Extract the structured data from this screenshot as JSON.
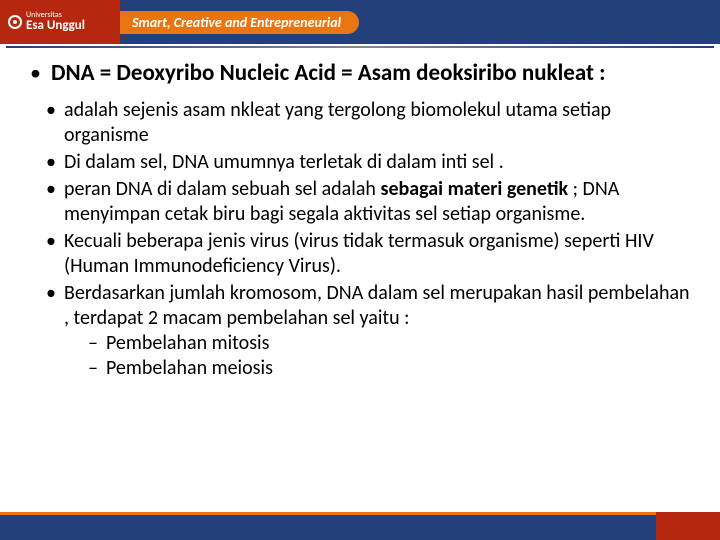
{
  "header": {
    "logo_top": "Universitas",
    "logo_bottom": "Esa Unggul",
    "tagline": "Smart, Creative and Entrepreneurial"
  },
  "title": "DNA = Deoxyribo Nucleic Acid = Asam deoksiribo nukleat :",
  "bullets": [
    {
      "text": "adalah sejenis asam nkleat yang tergolong biomolekul utama setiap organisme"
    },
    {
      "pre": "Di dalam sel",
      "mid": ", DNA umumnya terletak di dalam inti sel",
      "post": " ."
    },
    {
      "pre": "peran DNA di dalam sebuah sel adalah ",
      "bold": "sebagai materi genetik",
      "post": " ; DNA menyimpan cetak biru bagi segala aktivitas sel  setiap organisme."
    },
    {
      "text": "Kecuali beberapa jenis virus (virus tidak termasuk organisme) seperti HIV (Human Immunodeficiency Virus)."
    },
    {
      "text": "Berdasarkan jumlah kromosom, DNA  dalam sel merupakan hasil pembelahan , terdapat 2 macam pembelahan sel yaitu :"
    }
  ],
  "sub_bullets": [
    "Pembelahan mitosis",
    "Pembelahan meiosis"
  ]
}
